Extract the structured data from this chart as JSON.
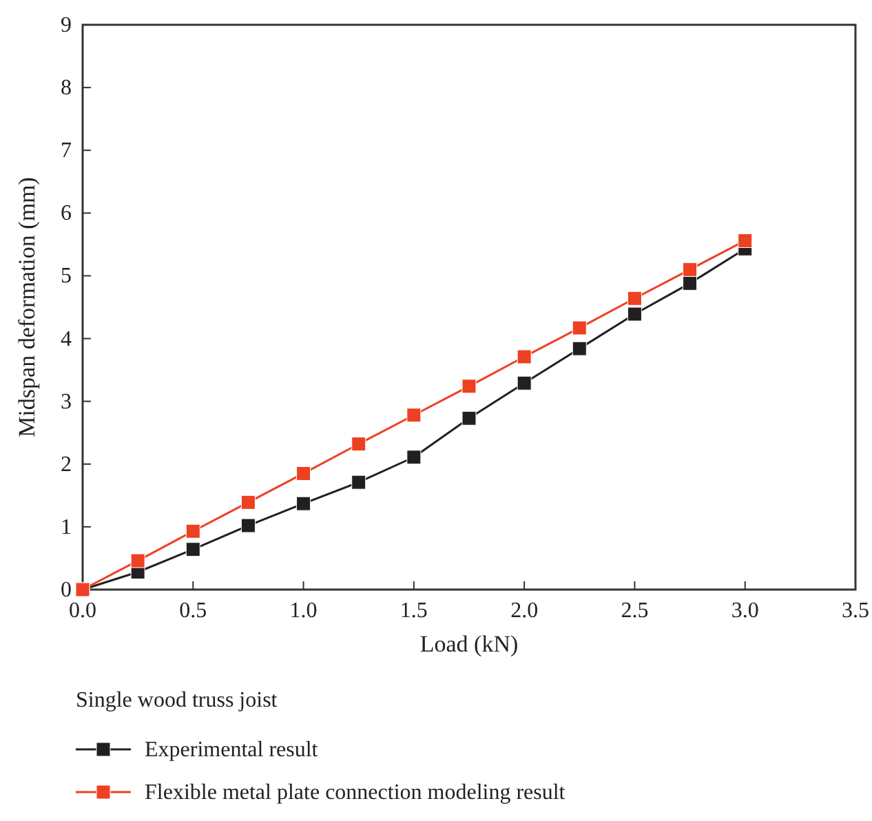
{
  "chart_data": {
    "type": "line",
    "xlabel": "Load (kN)",
    "ylabel": "Midspan deformation (mm)",
    "legend_title": "Single wood truss joist",
    "x": [
      0,
      0.25,
      0.5,
      0.75,
      1.0,
      1.25,
      1.5,
      1.75,
      2.0,
      2.25,
      2.5,
      2.75,
      3.0
    ],
    "series": [
      {
        "name": "Experimental result",
        "color": "#231f20",
        "values": [
          0,
          0.28,
          0.64,
          1.02,
          1.37,
          1.71,
          2.11,
          2.73,
          3.29,
          3.84,
          4.39,
          4.88,
          5.43
        ]
      },
      {
        "name": "Flexible metal plate connection modeling result",
        "color": "#ee4023",
        "values": [
          0,
          0.46,
          0.93,
          1.39,
          1.85,
          2.32,
          2.78,
          3.24,
          3.71,
          4.17,
          4.64,
          5.1,
          5.56
        ]
      }
    ],
    "xlim": [
      0,
      3.5
    ],
    "xticks": [
      {
        "value": 0,
        "label": "0.0"
      },
      {
        "value": 0.5,
        "label": "0.5"
      },
      {
        "value": 1,
        "label": "1.0"
      },
      {
        "value": 1.5,
        "label": "1.5"
      },
      {
        "value": 2,
        "label": "2.0"
      },
      {
        "value": 2.5,
        "label": "2.5"
      },
      {
        "value": 3,
        "label": "3.0"
      },
      {
        "value": 3.5,
        "label": "3.5"
      }
    ],
    "ylim": [
      0,
      9
    ],
    "yticks": [
      0,
      1,
      2,
      3,
      4,
      5,
      6,
      7,
      8,
      9
    ],
    "grid": false,
    "legend": "bottom",
    "marker": "square",
    "line_style": "solid"
  }
}
